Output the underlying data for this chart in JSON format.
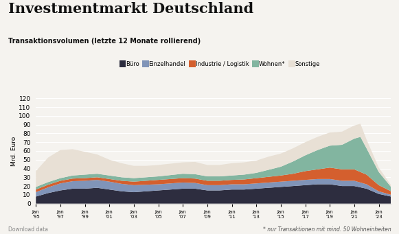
{
  "title": "Investmentmarkt Deutschland",
  "subtitle": "Transaktionsvolumen (letzte 12 Monate rollierend)",
  "ylabel": "Mrd. Euro",
  "footnote": "* nur Transaktionen mit mind. 50 Wohneinheiten",
  "download_text": "Download data",
  "legend_labels": [
    "Büro",
    "Einzelhandel",
    "Industrie / Logistik",
    "Wohnen*",
    "Sonstige"
  ],
  "colors": {
    "buero": "#2d2d3f",
    "einzelhandel": "#8094b8",
    "industrie": "#d45f2e",
    "wohnen": "#82b5a0",
    "sonstige": "#e8e0d5"
  },
  "background_color": "#f5f3ef",
  "ylim": [
    0,
    120
  ],
  "yticks": [
    0,
    10,
    20,
    30,
    40,
    50,
    60,
    70,
    80,
    90,
    100,
    110,
    120
  ]
}
